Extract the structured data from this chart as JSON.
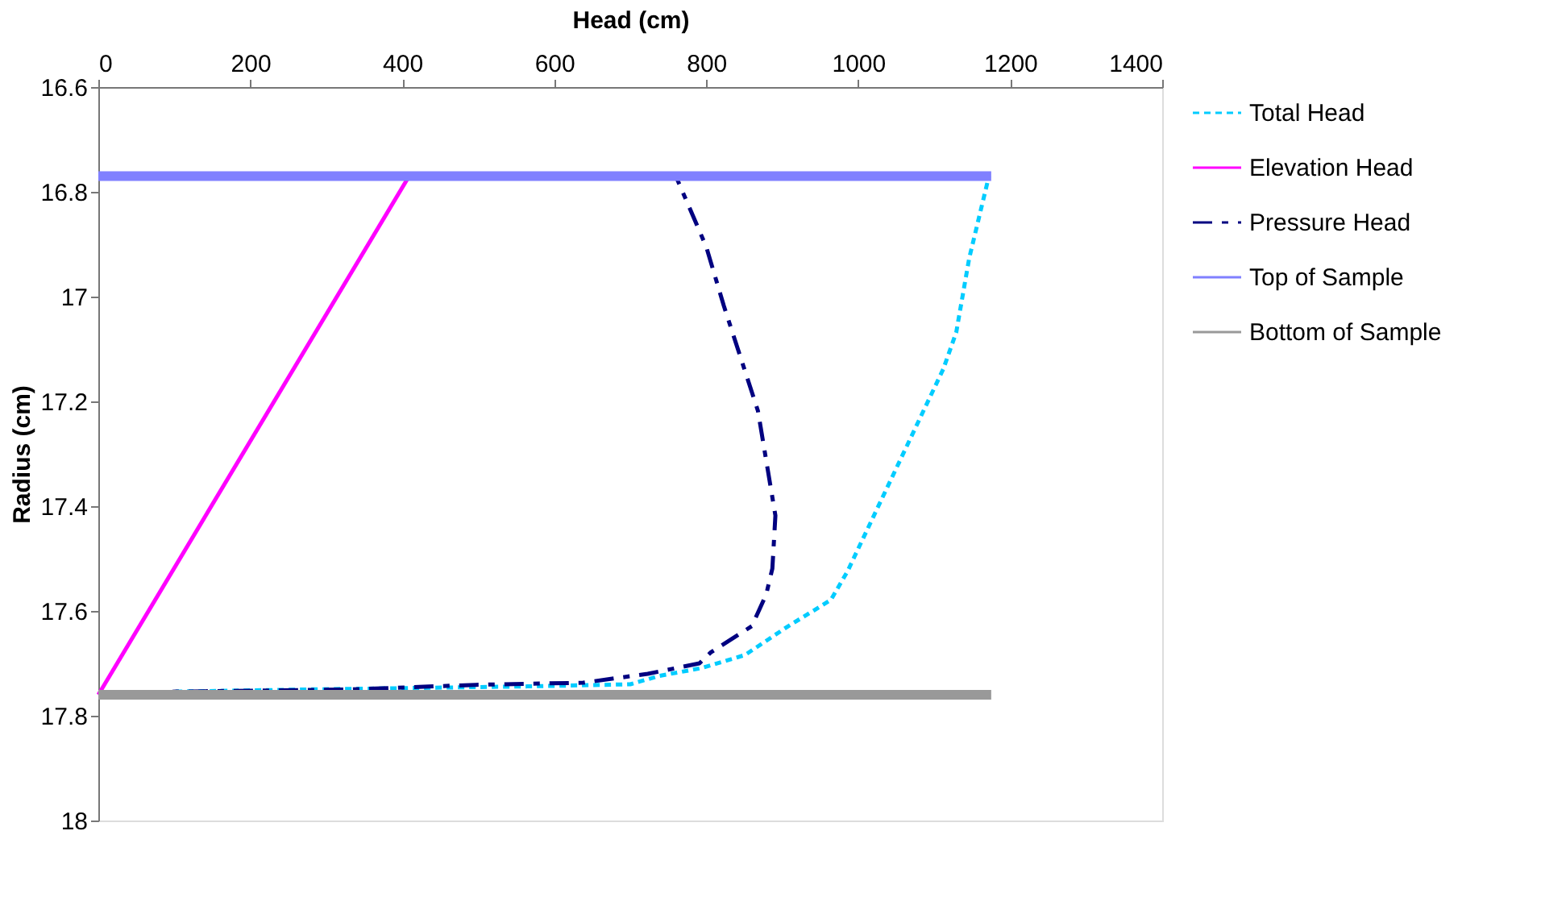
{
  "chart_data": {
    "type": "line",
    "xlabel": "Head (cm)",
    "ylabel": "Radius (cm)",
    "xlim": [
      0,
      1400
    ],
    "xticks": [
      0,
      200,
      400,
      600,
      800,
      1000,
      1200,
      1400
    ],
    "ylim": [
      18,
      16.6
    ],
    "yticks": [
      16.6,
      16.8,
      17,
      17.2,
      17.4,
      17.6,
      17.8,
      18
    ],
    "grid": false,
    "legend": "right",
    "marker": "none",
    "series": [
      {
        "name": "Total Head",
        "color": "#00ccff",
        "line_style": "dotted",
        "x": [
          102,
          270,
          565,
          700,
          738,
          794,
          851,
          908,
          964,
          986,
          1112,
          1129,
          1146,
          1172
        ],
        "values": [
          17.754,
          17.75,
          17.744,
          17.74,
          17.724,
          17.709,
          17.684,
          17.629,
          17.579,
          17.524,
          17.138,
          17.068,
          16.927,
          16.77
        ]
      },
      {
        "name": "Elevation Head",
        "color": "#ff00ff",
        "line_style": "solid",
        "x": [
          0,
          409
        ],
        "values": [
          17.76,
          16.77
        ]
      },
      {
        "name": "Pressure Head",
        "color": "#000080",
        "line_style": "dashed",
        "x": [
          0,
          102,
          328,
          497,
          638,
          723,
          791,
          806,
          860,
          879,
          887,
          891,
          868,
          823,
          800,
          760
        ],
        "values": [
          17.76,
          17.754,
          17.75,
          17.741,
          17.737,
          17.72,
          17.7,
          17.679,
          17.629,
          17.568,
          17.519,
          17.418,
          17.218,
          17.017,
          16.905,
          16.77
        ]
      },
      {
        "name": "Top of Sample",
        "color": "#8080ff",
        "line_style": "solid",
        "x": [
          0,
          1175
        ],
        "values": [
          16.77,
          16.77
        ]
      },
      {
        "name": "Bottom of Sample",
        "color": "#999999",
        "line_style": "solid",
        "x": [
          0,
          1175
        ],
        "values": [
          17.76,
          17.76
        ]
      }
    ]
  }
}
